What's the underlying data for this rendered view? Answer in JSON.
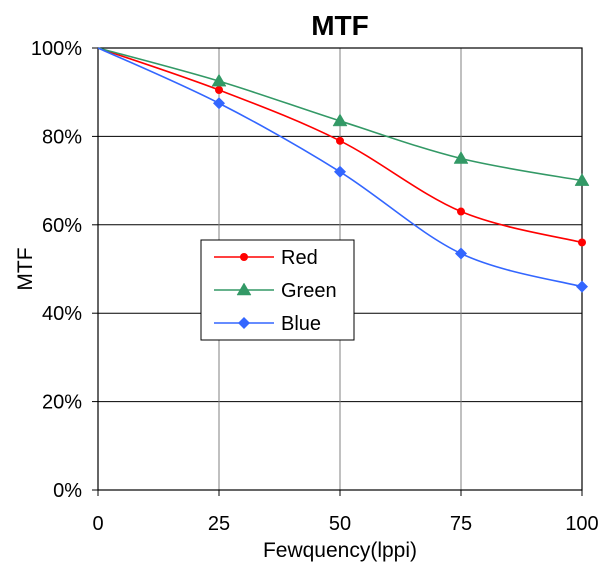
{
  "chart_data": {
    "type": "line",
    "title": "MTF",
    "xlabel": "Fewquency(lppi)",
    "ylabel": "MTF",
    "xlim": [
      0,
      100
    ],
    "ylim": [
      0,
      100
    ],
    "x_ticks": [
      0,
      25,
      50,
      75,
      100
    ],
    "x_tick_labels": [
      "0",
      "25",
      "50",
      "75",
      "100"
    ],
    "y_ticks": [
      0,
      20,
      40,
      60,
      80,
      100
    ],
    "y_tick_labels": [
      "0%",
      "20%",
      "40%",
      "60%",
      "80%",
      "100%"
    ],
    "grid": true,
    "legend_position": "center-left",
    "series": [
      {
        "name": "Red",
        "color": "#ff0000",
        "marker": "circle",
        "x": [
          0,
          25,
          50,
          75,
          100
        ],
        "values": [
          100,
          90.5,
          79,
          63,
          56
        ]
      },
      {
        "name": "Green",
        "color": "#339966",
        "marker": "triangle",
        "x": [
          0,
          25,
          50,
          75,
          100
        ],
        "values": [
          100,
          92.5,
          83.5,
          75,
          70
        ]
      },
      {
        "name": "Blue",
        "color": "#3366ff",
        "marker": "diamond",
        "x": [
          0,
          25,
          50,
          75,
          100
        ],
        "values": [
          100,
          87.5,
          72,
          53.5,
          46
        ]
      }
    ]
  }
}
